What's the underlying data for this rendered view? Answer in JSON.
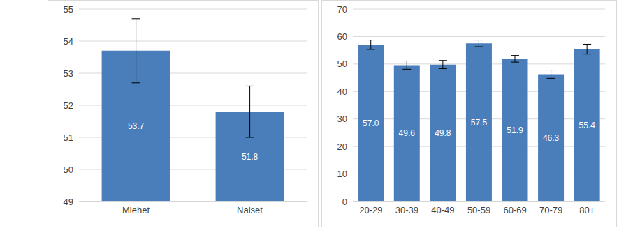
{
  "chart_data": [
    {
      "type": "bar",
      "categories": [
        "Miehet",
        "Naiset"
      ],
      "values": [
        53.7,
        51.8
      ],
      "errors": [
        1.0,
        0.8
      ],
      "color": "#4a7ebb",
      "ylim": [
        49,
        55
      ],
      "yticks": [
        49,
        50,
        51,
        52,
        53,
        54,
        55
      ],
      "grid": true,
      "data_labels": true
    },
    {
      "type": "bar",
      "categories": [
        "20-29",
        "30-39",
        "40-49",
        "50-59",
        "60-69",
        "70-79",
        "80+"
      ],
      "values": [
        57.0,
        49.6,
        49.8,
        57.5,
        51.9,
        46.3,
        55.4
      ],
      "value_labels": [
        "57.0",
        "49.6",
        "49.8",
        "57.5",
        "51.9",
        "46.3",
        "55.4"
      ],
      "errors": [
        1.7,
        1.5,
        1.5,
        1.2,
        1.2,
        1.5,
        1.8
      ],
      "color": "#4a7ebb",
      "ylim": [
        0,
        70
      ],
      "yticks": [
        0,
        10,
        20,
        30,
        40,
        50,
        60,
        70
      ],
      "grid": true,
      "data_labels": true
    }
  ]
}
